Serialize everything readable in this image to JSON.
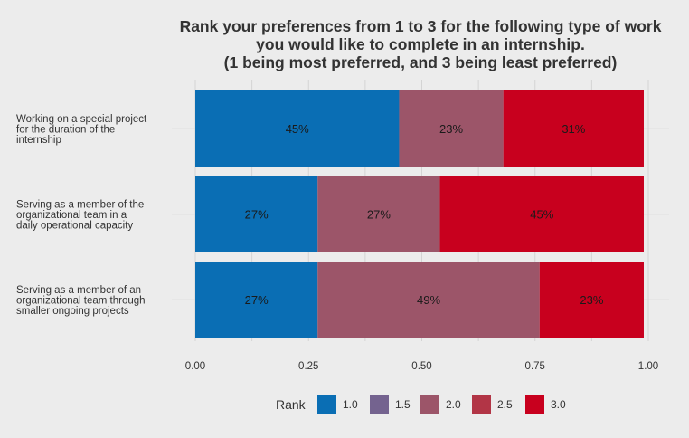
{
  "chart_data": {
    "type": "bar",
    "orientation": "horizontal",
    "stacked": true,
    "title": [
      "Rank your preferences from 1 to 3 for the following type of work",
      "you would like to complete in an internship.",
      "(1 being most preferred, and 3 being least preferred)"
    ],
    "xlabel": "",
    "ylabel": "",
    "xlim": [
      0,
      1
    ],
    "x_ticks": [
      "0.00",
      "0.25",
      "0.50",
      "0.75",
      "1.00"
    ],
    "x_tick_values": [
      0,
      0.25,
      0.5,
      0.75,
      1.0
    ],
    "grid": true,
    "categories": [
      [
        "Working on a special project",
        "for the duration of the",
        "internship"
      ],
      [
        "Serving as a member of the",
        "organizational team in a",
        "daily operational capacity"
      ],
      [
        "Serving as a member of an",
        "organizational team through",
        "smaller ongoing projects"
      ]
    ],
    "series": [
      {
        "rank": "1.0",
        "color": "#0a6eb4",
        "values": [
          0.45,
          0.27,
          0.27
        ],
        "labels": [
          "45%",
          "27%",
          "27%"
        ]
      },
      {
        "rank": "2.0",
        "color": "#9c5569",
        "values": [
          0.23,
          0.27,
          0.49
        ],
        "labels": [
          "23%",
          "27%",
          "49%"
        ]
      },
      {
        "rank": "3.0",
        "color": "#c8001e",
        "values": [
          0.31,
          0.45,
          0.23
        ],
        "labels": [
          "31%",
          "45%",
          "23%"
        ]
      }
    ],
    "legend": {
      "title": "Rank",
      "position": "bottom",
      "entries": [
        {
          "label": "1.0",
          "color": "#0a6eb4"
        },
        {
          "label": "1.5",
          "color": "#74638f"
        },
        {
          "label": "2.0",
          "color": "#9c5569"
        },
        {
          "label": "2.5",
          "color": "#b23546"
        },
        {
          "label": "3.0",
          "color": "#c8001e"
        }
      ]
    }
  }
}
